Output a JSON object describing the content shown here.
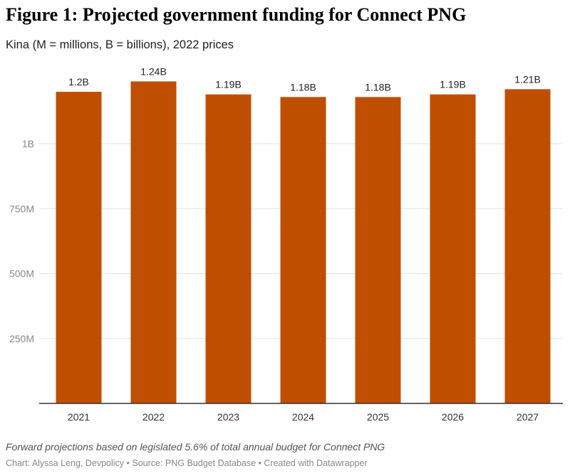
{
  "title": "Figure 1: Projected government funding for Connect PNG",
  "subtitle": "Kina (M = millions, B = billions), 2022 prices",
  "note": "Forward projections based on legislated 5.6% of total annual budget for Connect PNG",
  "credit": "Chart: Alyssa Leng, Devpolicy • Source: PNG Budget Database • Created with Datawrapper",
  "chart_data": {
    "type": "bar",
    "categories": [
      "2021",
      "2022",
      "2023",
      "2024",
      "2025",
      "2026",
      "2027"
    ],
    "values": [
      1200000000,
      1240000000,
      1190000000,
      1180000000,
      1180000000,
      1190000000,
      1210000000
    ],
    "value_labels": [
      "1.2B",
      "1.24B",
      "1.19B",
      "1.18B",
      "1.18B",
      "1.19B",
      "1.21B"
    ],
    "yticks": [
      250000000,
      500000000,
      750000000,
      1000000000
    ],
    "ytick_labels": [
      "250M",
      "500M",
      "750M",
      "1B"
    ],
    "ylim": [
      0,
      1250000000
    ],
    "title": "Figure 1: Projected government funding for Connect PNG",
    "xlabel": "",
    "ylabel": "",
    "grid": true,
    "bar_color": "#c04e00"
  }
}
